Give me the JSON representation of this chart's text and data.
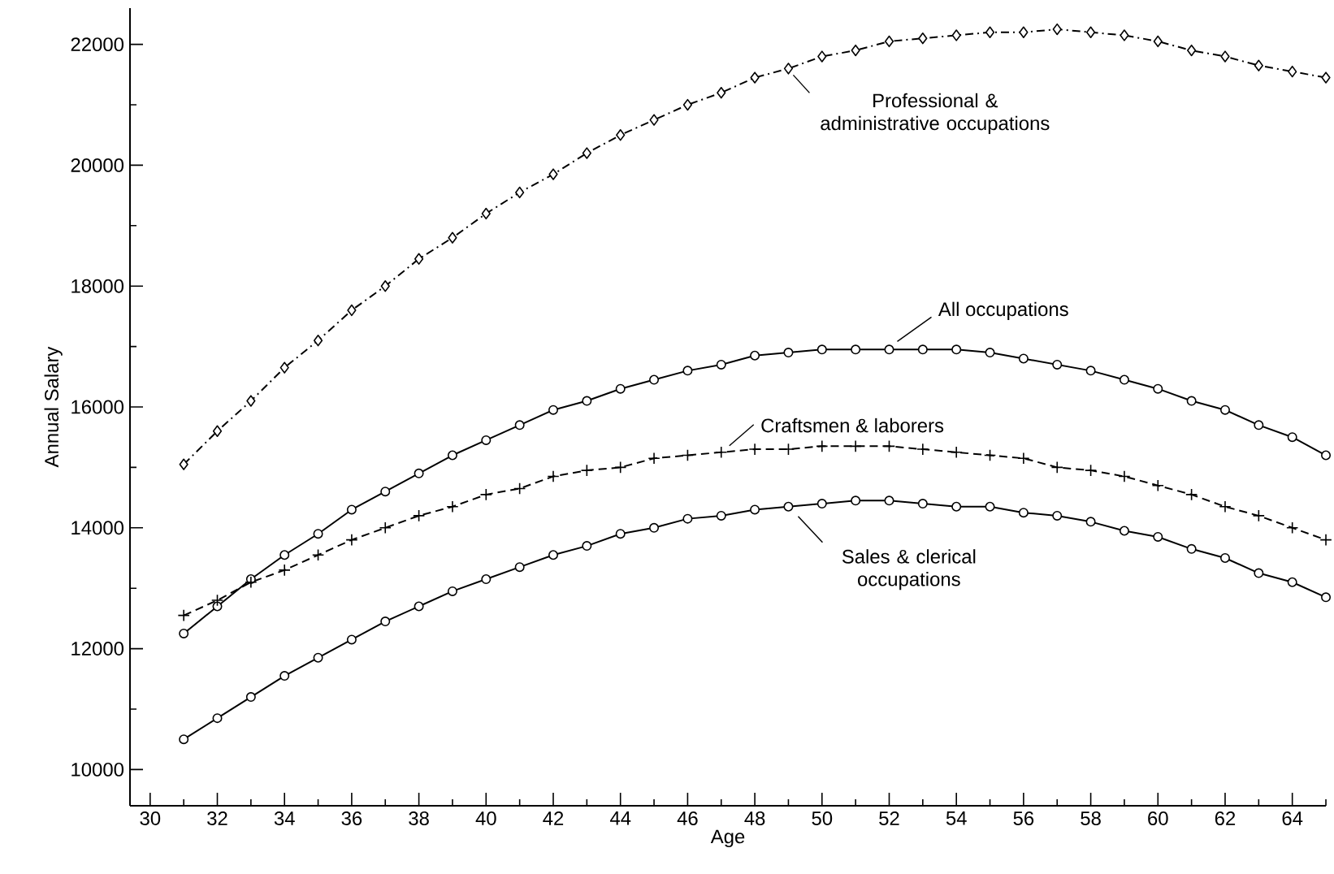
{
  "chart_data": {
    "type": "line",
    "xlabel": "Age",
    "ylabel": "Annual Salary",
    "x": [
      31,
      32,
      33,
      34,
      35,
      36,
      37,
      38,
      39,
      40,
      41,
      42,
      43,
      44,
      45,
      46,
      47,
      48,
      49,
      50,
      51,
      52,
      53,
      54,
      55,
      56,
      57,
      58,
      59,
      60,
      61,
      62,
      63,
      64,
      65
    ],
    "series": [
      {
        "color": "#000000",
        "marker": "diamond",
        "line_style": "dotted",
        "values": [
          15050,
          15600,
          16100,
          16650,
          17100,
          17600,
          18000,
          18450,
          18800,
          19200,
          19550,
          19850,
          20200,
          20500,
          20750,
          21000,
          21200,
          21450,
          21600,
          21800,
          21900,
          22050,
          22100,
          22150,
          22200,
          22200,
          22250,
          22200,
          22150,
          22050,
          21900,
          21800,
          21650,
          21550,
          21450
        ]
      },
      {
        "color": "#000000",
        "marker": "circle",
        "line_style": "solid",
        "values": [
          12250,
          12700,
          13150,
          13550,
          13900,
          14300,
          14600,
          14900,
          15200,
          15450,
          15700,
          15950,
          16100,
          16300,
          16450,
          16600,
          16700,
          16850,
          16900,
          16950,
          16950,
          16950,
          16950,
          16950,
          16900,
          16800,
          16700,
          16600,
          16450,
          16300,
          16100,
          15950,
          15700,
          15500,
          15200
        ]
      },
      {
        "color": "#000000",
        "marker": "cross",
        "line_style": "dashed",
        "values": [
          12550,
          12800,
          13100,
          13300,
          13550,
          13800,
          14000,
          14200,
          14350,
          14550,
          14650,
          14850,
          14950,
          15000,
          15150,
          15200,
          15250,
          15300,
          15300,
          15350,
          15350,
          15350,
          15300,
          15250,
          15200,
          15150,
          15000,
          14950,
          14850,
          14700,
          14550,
          14350,
          14200,
          14000,
          13800
        ]
      },
      {
        "color": "#000000",
        "marker": "circle",
        "line_style": "solid",
        "values": [
          10500,
          10850,
          11200,
          11550,
          11850,
          12150,
          12450,
          12700,
          12950,
          13150,
          13350,
          13550,
          13700,
          13900,
          14000,
          14150,
          14200,
          14300,
          14350,
          14400,
          14450,
          14450,
          14400,
          14350,
          14350,
          14250,
          14200,
          14100,
          13950,
          13850,
          13650,
          13500,
          13250,
          13100,
          12850
        ]
      }
    ],
    "xlim": [
      29.4,
      65
    ],
    "ylim": [
      9400,
      22600
    ],
    "xticks": [
      30,
      {
        "value": 31,
        "label": null
      },
      32,
      {
        "value": 33,
        "label": null
      },
      34,
      {
        "value": 35,
        "label": null
      },
      36,
      {
        "value": 37,
        "label": null
      },
      38,
      {
        "value": 39,
        "label": null
      },
      40,
      {
        "value": 41,
        "label": null
      },
      42,
      {
        "value": 43,
        "label": null
      },
      44,
      {
        "value": 45,
        "label": null
      },
      46,
      {
        "value": 47,
        "label": null
      },
      48,
      {
        "value": 49,
        "label": null
      },
      50,
      {
        "value": 51,
        "label": null
      },
      52,
      {
        "value": 53,
        "label": null
      },
      54,
      {
        "value": 55,
        "label": null
      },
      56,
      {
        "value": 57,
        "label": null
      },
      58,
      {
        "value": 59,
        "label": null
      },
      60,
      {
        "value": 61,
        "label": null
      },
      62,
      {
        "value": 63,
        "label": null
      },
      64,
      {
        "value": 65,
        "label": null
      }
    ],
    "yticks": [
      10000,
      {
        "value": 11000,
        "label": null
      },
      12000,
      {
        "value": 13000,
        "label": null
      },
      14000,
      {
        "value": 15000,
        "label": null
      },
      16000,
      {
        "value": 17000,
        "label": null
      },
      18000,
      {
        "value": 19000,
        "label": null
      },
      20000,
      {
        "value": 21000,
        "label": null
      },
      22000
    ],
    "annotations": [
      {
        "text": "Professional & administrative occupations",
        "x": 49,
        "y": 21600
      },
      {
        "text": "All occupations",
        "x": 52,
        "y": 16950
      },
      {
        "text": "Craftsmen & laborers",
        "x": 47,
        "y": 15250
      },
      {
        "text": "Sales & clerical occupations",
        "x": 49,
        "y": 14350
      }
    ]
  }
}
